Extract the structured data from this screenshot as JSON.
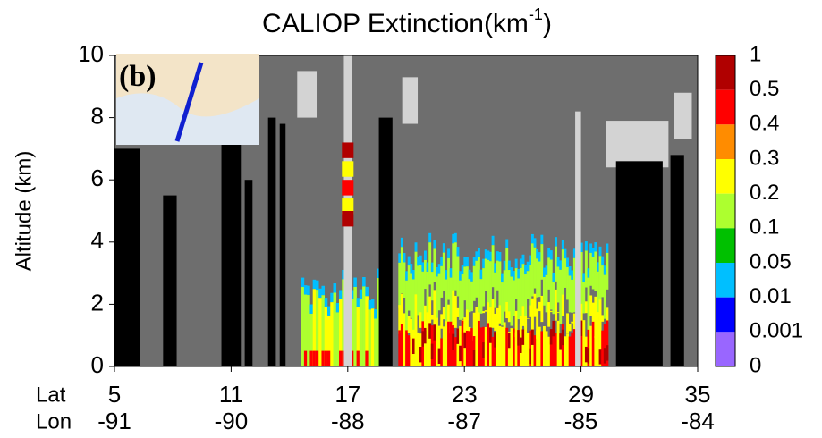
{
  "chart_data": {
    "type": "curtain",
    "title": [
      "CALIOP Extinction(km",
      "-1",
      ")"
    ],
    "ylabel": "Altitude (km)",
    "ylim": [
      0,
      10
    ],
    "yticks": [
      0,
      2,
      4,
      6,
      8,
      10
    ],
    "xlim": [
      5,
      35
    ],
    "xticks": [
      5,
      11,
      17,
      23,
      29,
      35
    ],
    "row_labels": [
      "Lat",
      "Lon"
    ],
    "lon": [
      -91,
      -90,
      -88,
      -87,
      -85,
      -84
    ],
    "inset_label": "(b)",
    "colorbar": {
      "ticks": [
        1,
        0.5,
        0.4,
        0.3,
        0.2,
        0.1,
        0.05,
        0.01,
        0.001,
        0
      ],
      "colors": [
        "#b00000",
        "#ff0000",
        "#ff8c00",
        "#ffff00",
        "#adff2f",
        "#00c000",
        "#00bfff",
        "#0000ff",
        "#9966ff"
      ]
    }
  }
}
